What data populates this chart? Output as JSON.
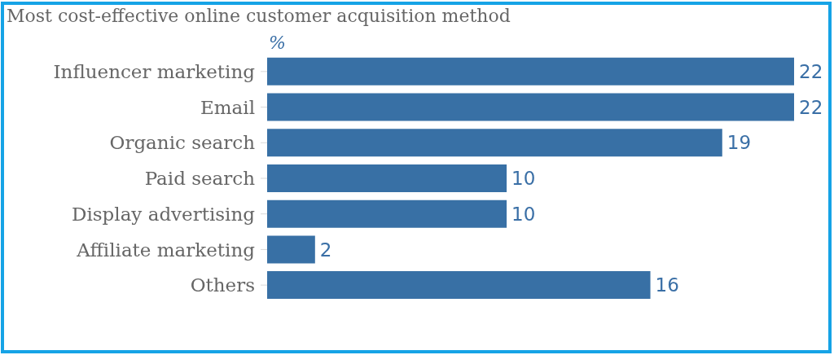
{
  "chart_data": {
    "type": "bar",
    "orientation": "horizontal",
    "title": "Most cost-effective online customer acquisition method",
    "xlabel": "%",
    "categories": [
      "Influencer marketing",
      "Email",
      "Organic search",
      "Paid search",
      "Display advertising",
      "Affiliate marketing",
      "Others"
    ],
    "values": [
      22,
      22,
      19,
      10,
      10,
      2,
      16
    ],
    "color": "#3870a5",
    "data_labels": true
  }
}
